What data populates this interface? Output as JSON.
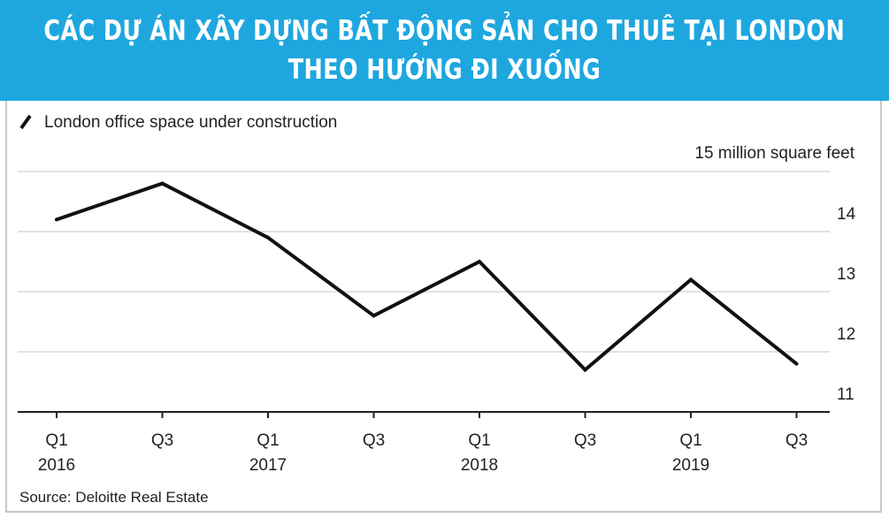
{
  "banner": {
    "line1": "CÁC DỰ ÁN XÂY DỰNG BẤT ĐỘNG SẢN CHO THUÊ TẠI LONDON",
    "line2": "THEO HƯỚNG ĐI XUỐNG",
    "color": "#1ea7df"
  },
  "chart_data": {
    "type": "line",
    "legend": "London office space under construction",
    "unit_label": "15 million square feet",
    "x_ticks": [
      {
        "top": "Q1",
        "bottom": "2016"
      },
      {
        "top": "Q3",
        "bottom": ""
      },
      {
        "top": "Q1",
        "bottom": "2017"
      },
      {
        "top": "Q3",
        "bottom": ""
      },
      {
        "top": "Q1",
        "bottom": "2018"
      },
      {
        "top": "Q3",
        "bottom": ""
      },
      {
        "top": "Q1",
        "bottom": "2019"
      },
      {
        "top": "Q3",
        "bottom": ""
      }
    ],
    "x": [
      "Q1 2016",
      "Q3 2016",
      "Q1 2017",
      "Q3 2017",
      "Q1 2018",
      "Q3 2018",
      "Q1 2019",
      "Q3 2019"
    ],
    "series": [
      {
        "name": "London office space under construction",
        "values": [
          14.2,
          14.8,
          13.9,
          12.6,
          13.5,
          11.7,
          13.2,
          11.8
        ],
        "color": "#111111"
      }
    ],
    "y_ticks": [
      14,
      13,
      12,
      11
    ],
    "ylim": [
      11,
      15
    ],
    "grid": true,
    "source": "Source: Deloitte Real Estate"
  }
}
